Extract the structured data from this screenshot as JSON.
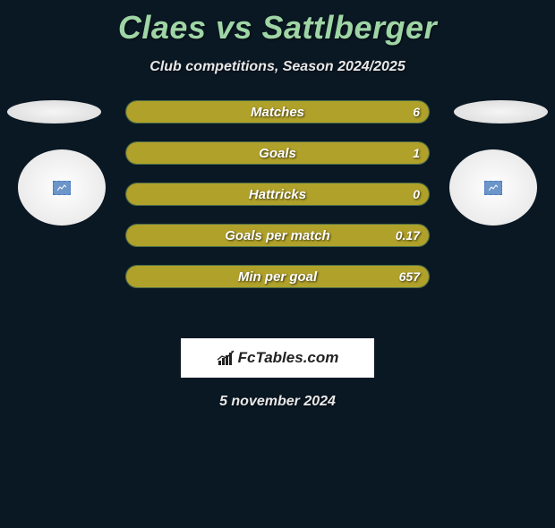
{
  "title": "Claes vs Sattlberger",
  "subtitle": "Club competitions, Season 2024/2025",
  "date": "5 november 2024",
  "brand": "FcTables.com",
  "colors": {
    "background": "#0a1824",
    "title": "#9fd5a5",
    "text": "#e8e8e8",
    "bar_left": "#b0a12a",
    "bar_right": "#b0a12a",
    "bar_outline_left": "#4d6f48",
    "bar_outline_right": "#4d6f48"
  },
  "bars": [
    {
      "label": "Matches",
      "left": "",
      "right": "6",
      "left_pct": 0,
      "right_pct": 100
    },
    {
      "label": "Goals",
      "left": "",
      "right": "1",
      "left_pct": 0,
      "right_pct": 100
    },
    {
      "label": "Hattricks",
      "left": "",
      "right": "0",
      "left_pct": 0,
      "right_pct": 100
    },
    {
      "label": "Goals per match",
      "left": "",
      "right": "0.17",
      "left_pct": 0,
      "right_pct": 100
    },
    {
      "label": "Min per goal",
      "left": "",
      "right": "657",
      "left_pct": 0,
      "right_pct": 100
    }
  ]
}
